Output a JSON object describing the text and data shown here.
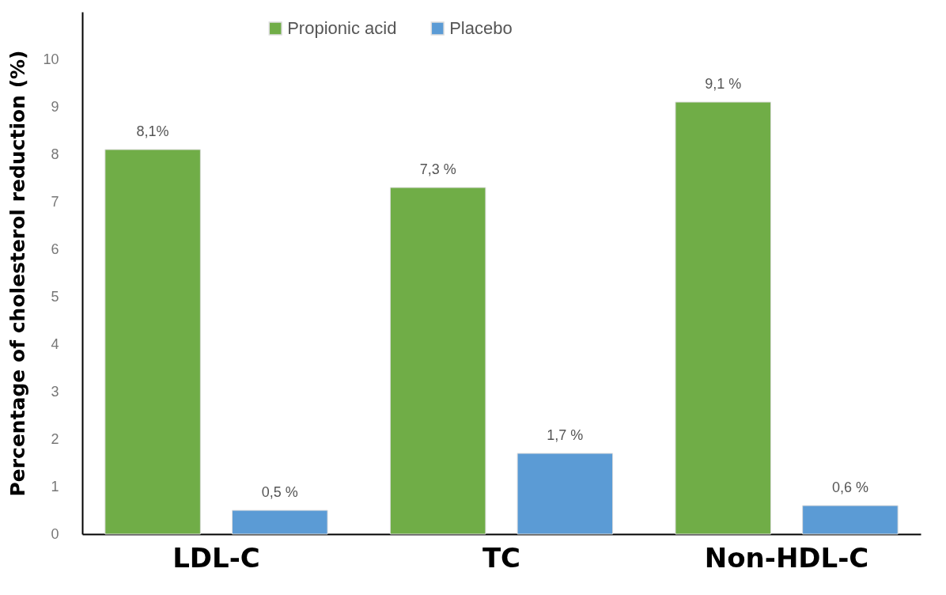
{
  "chart_data": {
    "type": "bar",
    "ylabel": "Percentage of cholesterol reduction (%)",
    "categories": [
      "LDL-C",
      "TC",
      "Non-HDL-C"
    ],
    "series": [
      {
        "name": "Propionic acid",
        "color": "#70ad47",
        "values": [
          8.1,
          7.3,
          9.1
        ],
        "value_labels": [
          "8,1%",
          "7,3 %",
          "9,1 %"
        ]
      },
      {
        "name": "Placebo",
        "color": "#5b9bd5",
        "values": [
          0.5,
          1.7,
          0.6
        ],
        "value_labels": [
          "0,5 %",
          "1,7 %",
          "0,6 %"
        ]
      }
    ],
    "ylim": [
      0,
      11
    ],
    "yticks": [
      0,
      1,
      2,
      3,
      4,
      5,
      6,
      7,
      8,
      9,
      10
    ],
    "grid": false,
    "legend": "top"
  }
}
